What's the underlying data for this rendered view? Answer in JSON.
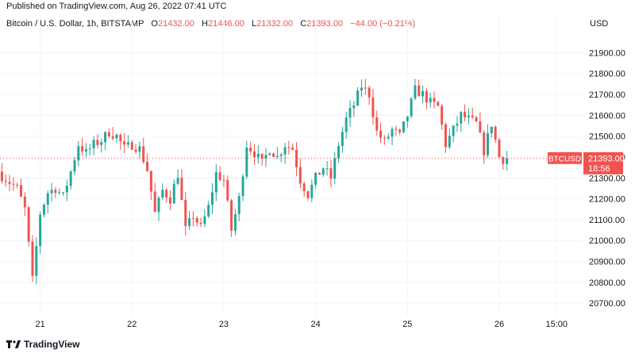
{
  "header": {
    "published": "Published on TradingView.com, Aug 26, 2022 07:41 UTC",
    "symbol": "Bitcoin / U.S. Dollar, 1h, BITSTAMP",
    "o_label": "O",
    "o_value": "21432.00",
    "h_label": "H",
    "h_value": "21446.00",
    "l_label": "L",
    "l_value": "21332.00",
    "c_label": "C",
    "c_value": "21393.00",
    "change": "−44.00 (−0.21%)",
    "currency": "USD"
  },
  "footer": {
    "brand": "TradingView"
  },
  "colors": {
    "up": "#26a69a",
    "down": "#ef5350",
    "grid": "#f0f3fa",
    "text": "#131722"
  },
  "price_tag": {
    "symbol": "BTCUSD",
    "price": "21393.00",
    "countdown": "18:56",
    "value": 21393
  },
  "chart_data": {
    "type": "candlestick",
    "x_ticks": [
      {
        "label": "21",
        "t": 0
      },
      {
        "label": "22",
        "t": 24
      },
      {
        "label": "23",
        "t": 48
      },
      {
        "label": "24",
        "t": 72
      },
      {
        "label": "25",
        "t": 96
      },
      {
        "label": "26",
        "t": 120
      },
      {
        "label": "15:00",
        "t": 135
      }
    ],
    "y_ticks": [
      20700,
      20800,
      20900,
      21000,
      21100,
      21200,
      21300,
      21400,
      21500,
      21600,
      21700,
      21800,
      21900
    ],
    "y_tick_labels": [
      "20700.00",
      "20800.00",
      "20900.00",
      "21000.00",
      "21100.00",
      "21200.00",
      "21300.00",
      "21400.00",
      "21500.00",
      "21600.00",
      "21700.00",
      "21800.00",
      "21900.00"
    ],
    "ylim": [
      20640,
      22000
    ],
    "t_range": [
      -10.5,
      142
    ],
    "anchors_close": [
      [
        -10,
        21310
      ],
      [
        -6,
        21250
      ],
      [
        -4,
        21150
      ],
      [
        -2,
        20810
      ],
      [
        0,
        21130
      ],
      [
        2,
        21230
      ],
      [
        4,
        21250
      ],
      [
        6,
        21210
      ],
      [
        8,
        21330
      ],
      [
        10,
        21460
      ],
      [
        12,
        21420
      ],
      [
        14,
        21460
      ],
      [
        16,
        21480
      ],
      [
        18,
        21520
      ],
      [
        20,
        21500
      ],
      [
        22,
        21440
      ],
      [
        24,
        21460
      ],
      [
        26,
        21440
      ],
      [
        28,
        21340
      ],
      [
        30,
        21130
      ],
      [
        32,
        21240
      ],
      [
        34,
        21200
      ],
      [
        36,
        21320
      ],
      [
        38,
        21050
      ],
      [
        40,
        21120
      ],
      [
        42,
        21060
      ],
      [
        44,
        21160
      ],
      [
        46,
        21320
      ],
      [
        48,
        21290
      ],
      [
        50,
        21050
      ],
      [
        52,
        21200
      ],
      [
        54,
        21460
      ],
      [
        56,
        21420
      ],
      [
        58,
        21370
      ],
      [
        60,
        21440
      ],
      [
        62,
        21400
      ],
      [
        64,
        21460
      ],
      [
        66,
        21440
      ],
      [
        68,
        21290
      ],
      [
        70,
        21220
      ],
      [
        72,
        21300
      ],
      [
        74,
        21350
      ],
      [
        76,
        21300
      ],
      [
        78,
        21460
      ],
      [
        80,
        21580
      ],
      [
        82,
        21650
      ],
      [
        84,
        21740
      ],
      [
        86,
        21700
      ],
      [
        88,
        21520
      ],
      [
        90,
        21470
      ],
      [
        92,
        21530
      ],
      [
        94,
        21500
      ],
      [
        96,
        21600
      ],
      [
        98,
        21720
      ],
      [
        100,
        21700
      ],
      [
        102,
        21660
      ],
      [
        104,
        21640
      ],
      [
        106,
        21460
      ],
      [
        108,
        21530
      ],
      [
        110,
        21600
      ],
      [
        112,
        21580
      ],
      [
        114,
        21560
      ],
      [
        116,
        21430
      ],
      [
        118,
        21560
      ],
      [
        120,
        21400
      ],
      [
        121,
        21390
      ],
      [
        122,
        21393
      ]
    ]
  }
}
